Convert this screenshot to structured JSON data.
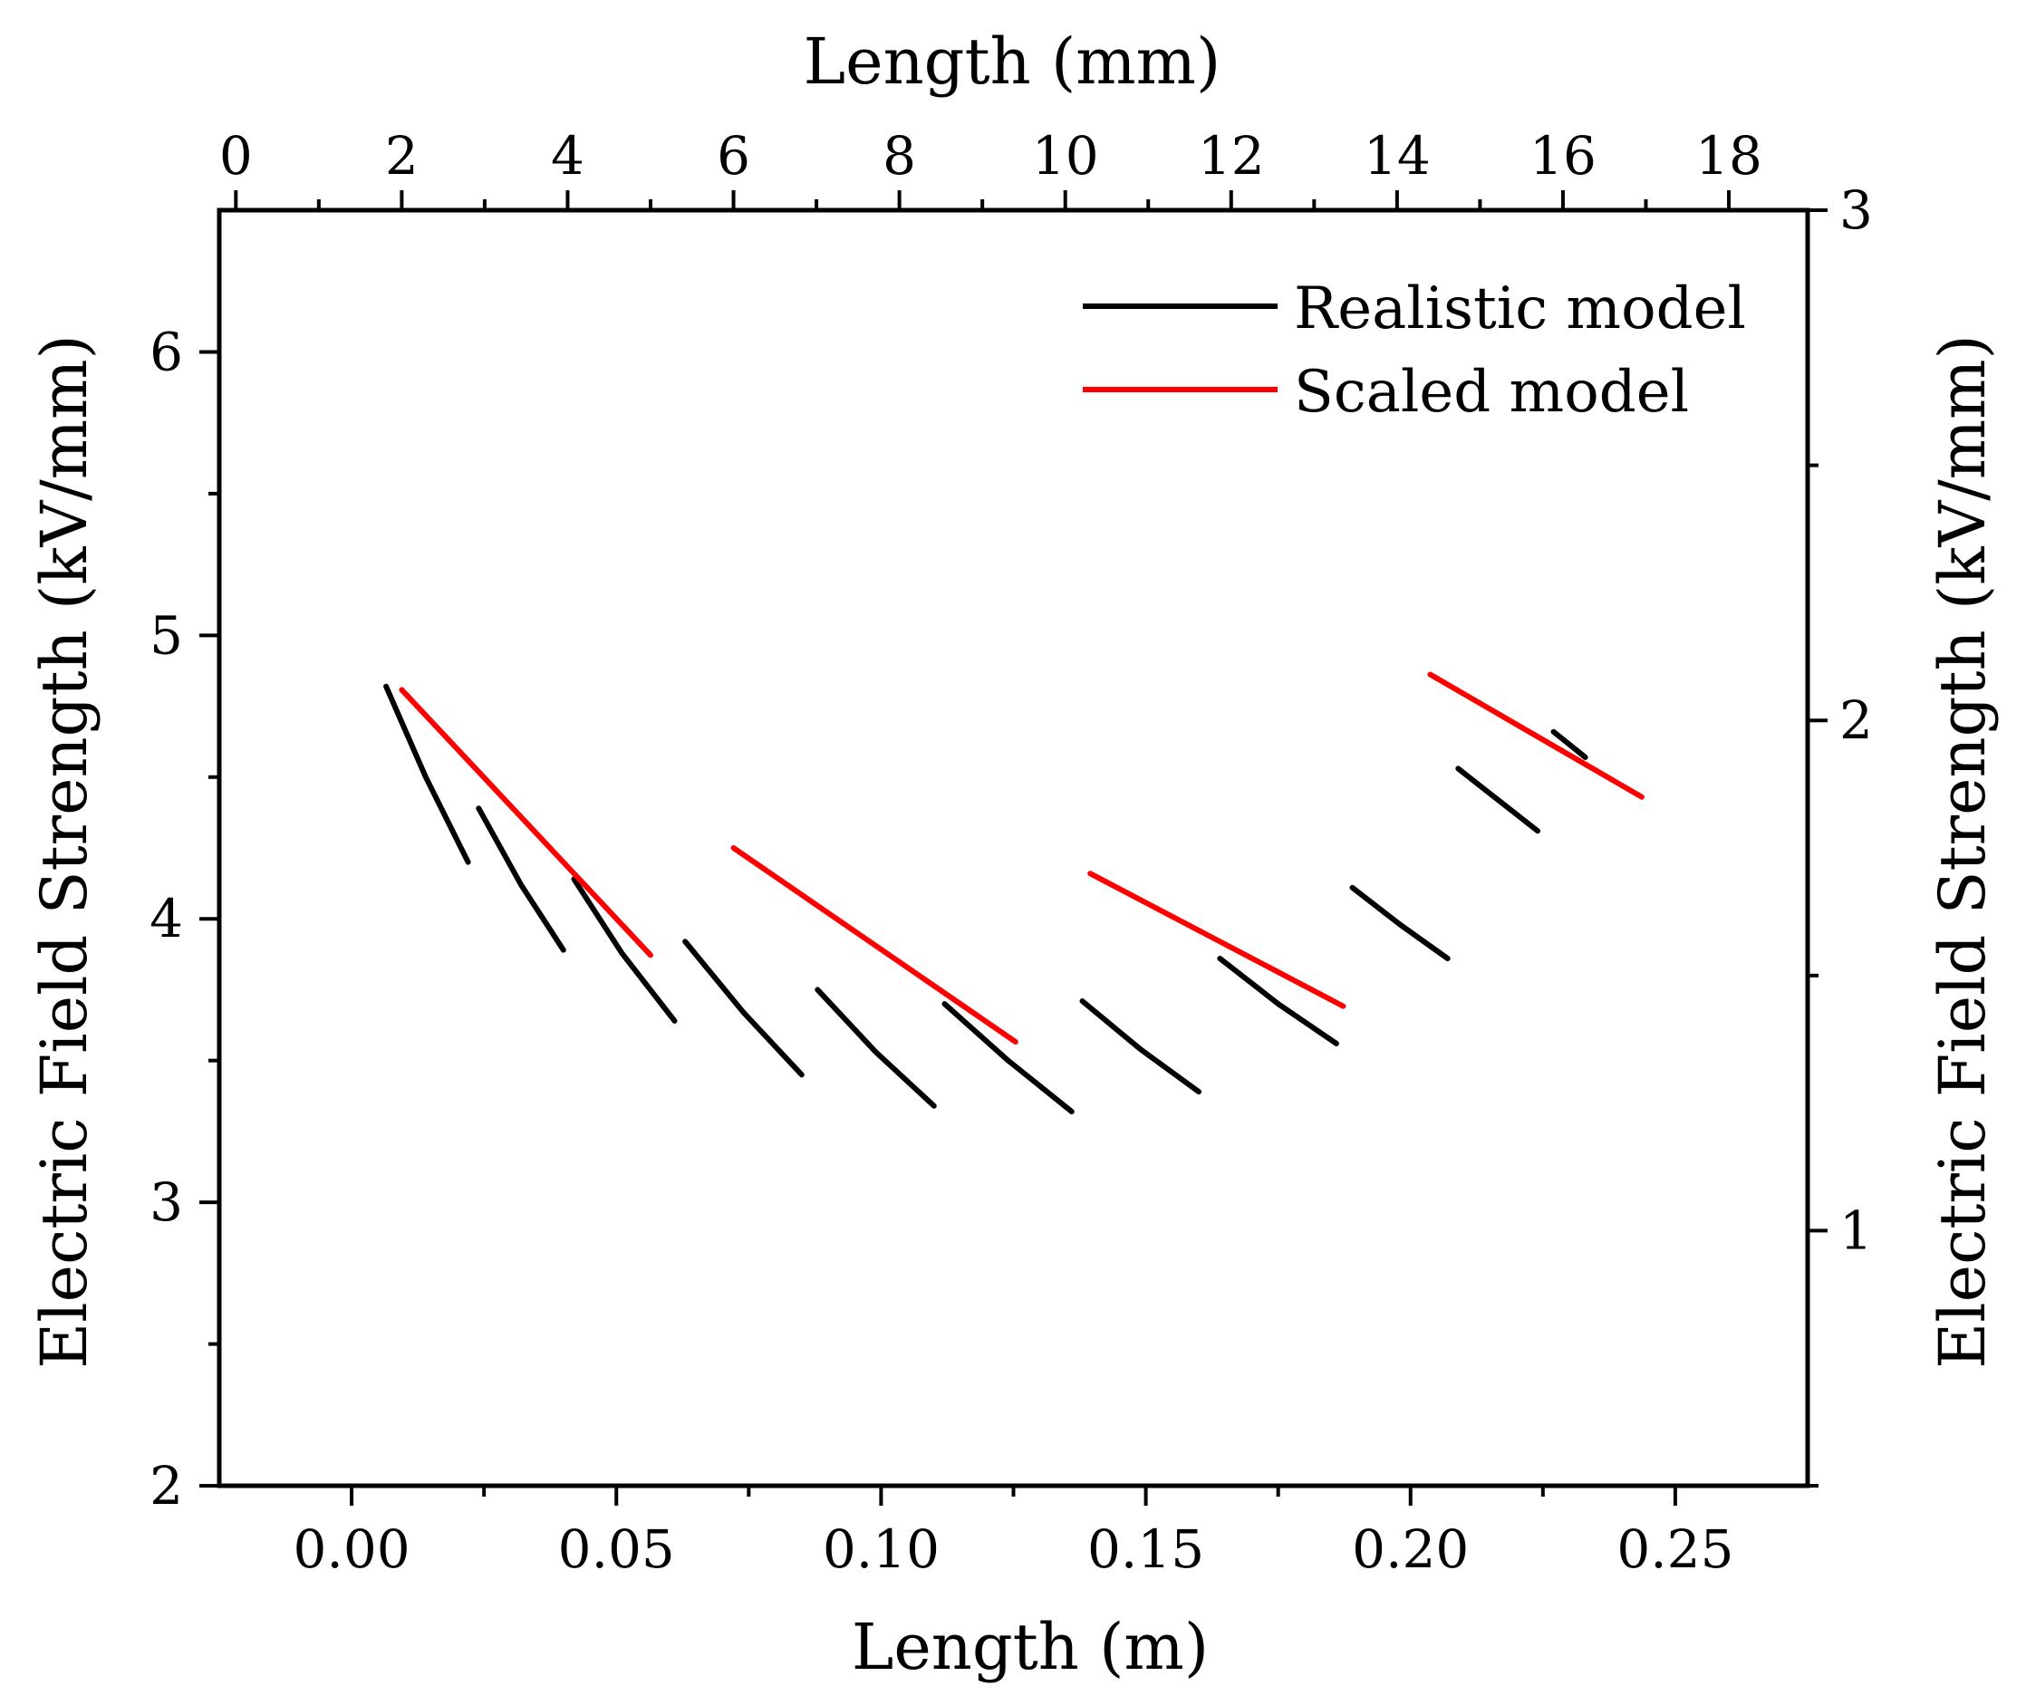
{
  "chart_data": {
    "type": "line",
    "title": "",
    "axes": {
      "bottom": {
        "label": "Length (m)",
        "range": [
          -0.025,
          0.275
        ],
        "ticks": [
          0.0,
          0.05,
          0.1,
          0.15,
          0.2,
          0.25
        ],
        "tick_labels": [
          "0.00",
          "0.05",
          "0.10",
          "0.15",
          "0.20",
          "0.25"
        ]
      },
      "top": {
        "label": "Length (mm)",
        "range": [
          -0.2,
          18.95
        ],
        "ticks": [
          0,
          2,
          4,
          6,
          8,
          10,
          12,
          14,
          16,
          18
        ],
        "tick_labels": [
          "0",
          "2",
          "4",
          "6",
          "8",
          "10",
          "12",
          "14",
          "16",
          "18"
        ]
      },
      "left": {
        "label": "Electric Field Strength (kV/mm)",
        "range": [
          2,
          6.5
        ],
        "ticks": [
          2,
          3,
          4,
          5,
          6
        ],
        "tick_labels": [
          "2",
          "3",
          "4",
          "5",
          "6"
        ]
      },
      "right": {
        "label": "Electric Field Strength (kV/mm)",
        "range": [
          0.5,
          3
        ],
        "ticks": [
          1,
          2,
          3
        ],
        "tick_labels": [
          "1",
          "2",
          "3"
        ]
      }
    },
    "grid": false,
    "legend": {
      "position": "top-right"
    },
    "series": [
      {
        "name": "Realistic model",
        "color": "#000000",
        "axes": "bottom-left",
        "segments": [
          [
            [
              0.0065,
              4.82
            ],
            [
              0.014,
              4.5
            ],
            [
              0.022,
              4.2
            ]
          ],
          [
            [
              0.024,
              4.39
            ],
            [
              0.032,
              4.12
            ],
            [
              0.04,
              3.89
            ]
          ],
          [
            [
              0.042,
              4.14
            ],
            [
              0.051,
              3.88
            ],
            [
              0.061,
              3.64
            ]
          ],
          [
            [
              0.063,
              3.92
            ],
            [
              0.074,
              3.67
            ],
            [
              0.085,
              3.45
            ]
          ],
          [
            [
              0.088,
              3.75
            ],
            [
              0.099,
              3.53
            ],
            [
              0.11,
              3.34
            ]
          ],
          [
            [
              0.112,
              3.7
            ],
            [
              0.124,
              3.5
            ],
            [
              0.136,
              3.32
            ]
          ],
          [
            [
              0.138,
              3.71
            ],
            [
              0.149,
              3.54
            ],
            [
              0.16,
              3.39
            ]
          ],
          [
            [
              0.164,
              3.86
            ],
            [
              0.175,
              3.7
            ],
            [
              0.186,
              3.56
            ]
          ],
          [
            [
              0.189,
              4.11
            ],
            [
              0.198,
              3.98
            ],
            [
              0.207,
              3.86
            ]
          ],
          [
            [
              0.209,
              4.53
            ],
            [
              0.224,
              4.31
            ]
          ],
          [
            [
              0.227,
              4.66
            ],
            [
              0.233,
              4.57
            ]
          ]
        ]
      },
      {
        "name": "Scaled model",
        "color": "#ff0000",
        "axes": "top-right",
        "segments": [
          [
            [
              2.0,
              2.06
            ],
            [
              5.0,
              1.54
            ]
          ],
          [
            [
              6.0,
              1.75
            ],
            [
              9.4,
              1.37
            ]
          ],
          [
            [
              10.3,
              1.7
            ],
            [
              13.35,
              1.44
            ]
          ],
          [
            [
              14.4,
              2.09
            ],
            [
              16.95,
              1.85
            ]
          ]
        ]
      }
    ]
  }
}
